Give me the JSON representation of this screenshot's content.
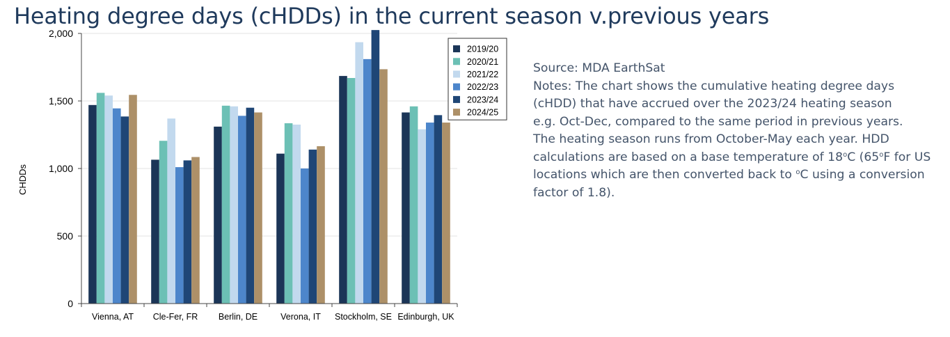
{
  "page": {
    "title": "Heating degree days (cHDDs) in the current season v.previous years"
  },
  "source": "Source: MDA EarthSat",
  "notes_lines": [
    "Notes: The chart shows the cumulative heating degree days",
    "(cHDD) that have accrued over the 2023/24 heating season",
    "e.g. Oct-Dec, compared to the same period in previous years.",
    "The heating season runs from October-May each year. HDD",
    [
      "calculations are based on a base temperature of 18",
      "o",
      "C (65",
      "o",
      "F for US"
    ],
    [
      "locations which are then converted back to ",
      "o",
      "C using a conversion"
    ],
    "factor of 1.8)."
  ],
  "chart_data": {
    "type": "bar",
    "title": "",
    "ylabel": "CHDDs",
    "xlabel": "",
    "ylim": [
      0,
      2000
    ],
    "yticks": [
      0,
      500,
      1000,
      1500,
      2000
    ],
    "ytick_labels": [
      "0",
      "500",
      "1,000",
      "1,500",
      "2,000"
    ],
    "grid": true,
    "legend_position": "top-right",
    "categories": [
      "Vienna, AT",
      "Cle-Fer, FR",
      "Berlin, DE",
      "Verona, IT",
      "Stockholm, SE",
      "Edinburgh, UK"
    ],
    "series": [
      {
        "name": "2019/20",
        "color": "#1b3557",
        "values": [
          1470,
          1065,
          1310,
          1110,
          1685,
          1415
        ]
      },
      {
        "name": "2020/21",
        "color": "#6cc0b5",
        "values": [
          1560,
          1205,
          1465,
          1335,
          1670,
          1460
        ]
      },
      {
        "name": "2021/22",
        "color": "#c2d9ee",
        "values": [
          1540,
          1370,
          1460,
          1325,
          1935,
          1290
        ]
      },
      {
        "name": "2022/23",
        "color": "#4d86cb",
        "values": [
          1445,
          1010,
          1390,
          1000,
          1810,
          1340
        ]
      },
      {
        "name": "2023/24",
        "color": "#1f4676",
        "values": [
          1385,
          1060,
          1450,
          1140,
          2025,
          1395
        ]
      },
      {
        "name": "2024/25",
        "color": "#ad9068",
        "values": [
          1545,
          1085,
          1415,
          1165,
          1735,
          1340
        ]
      }
    ]
  }
}
